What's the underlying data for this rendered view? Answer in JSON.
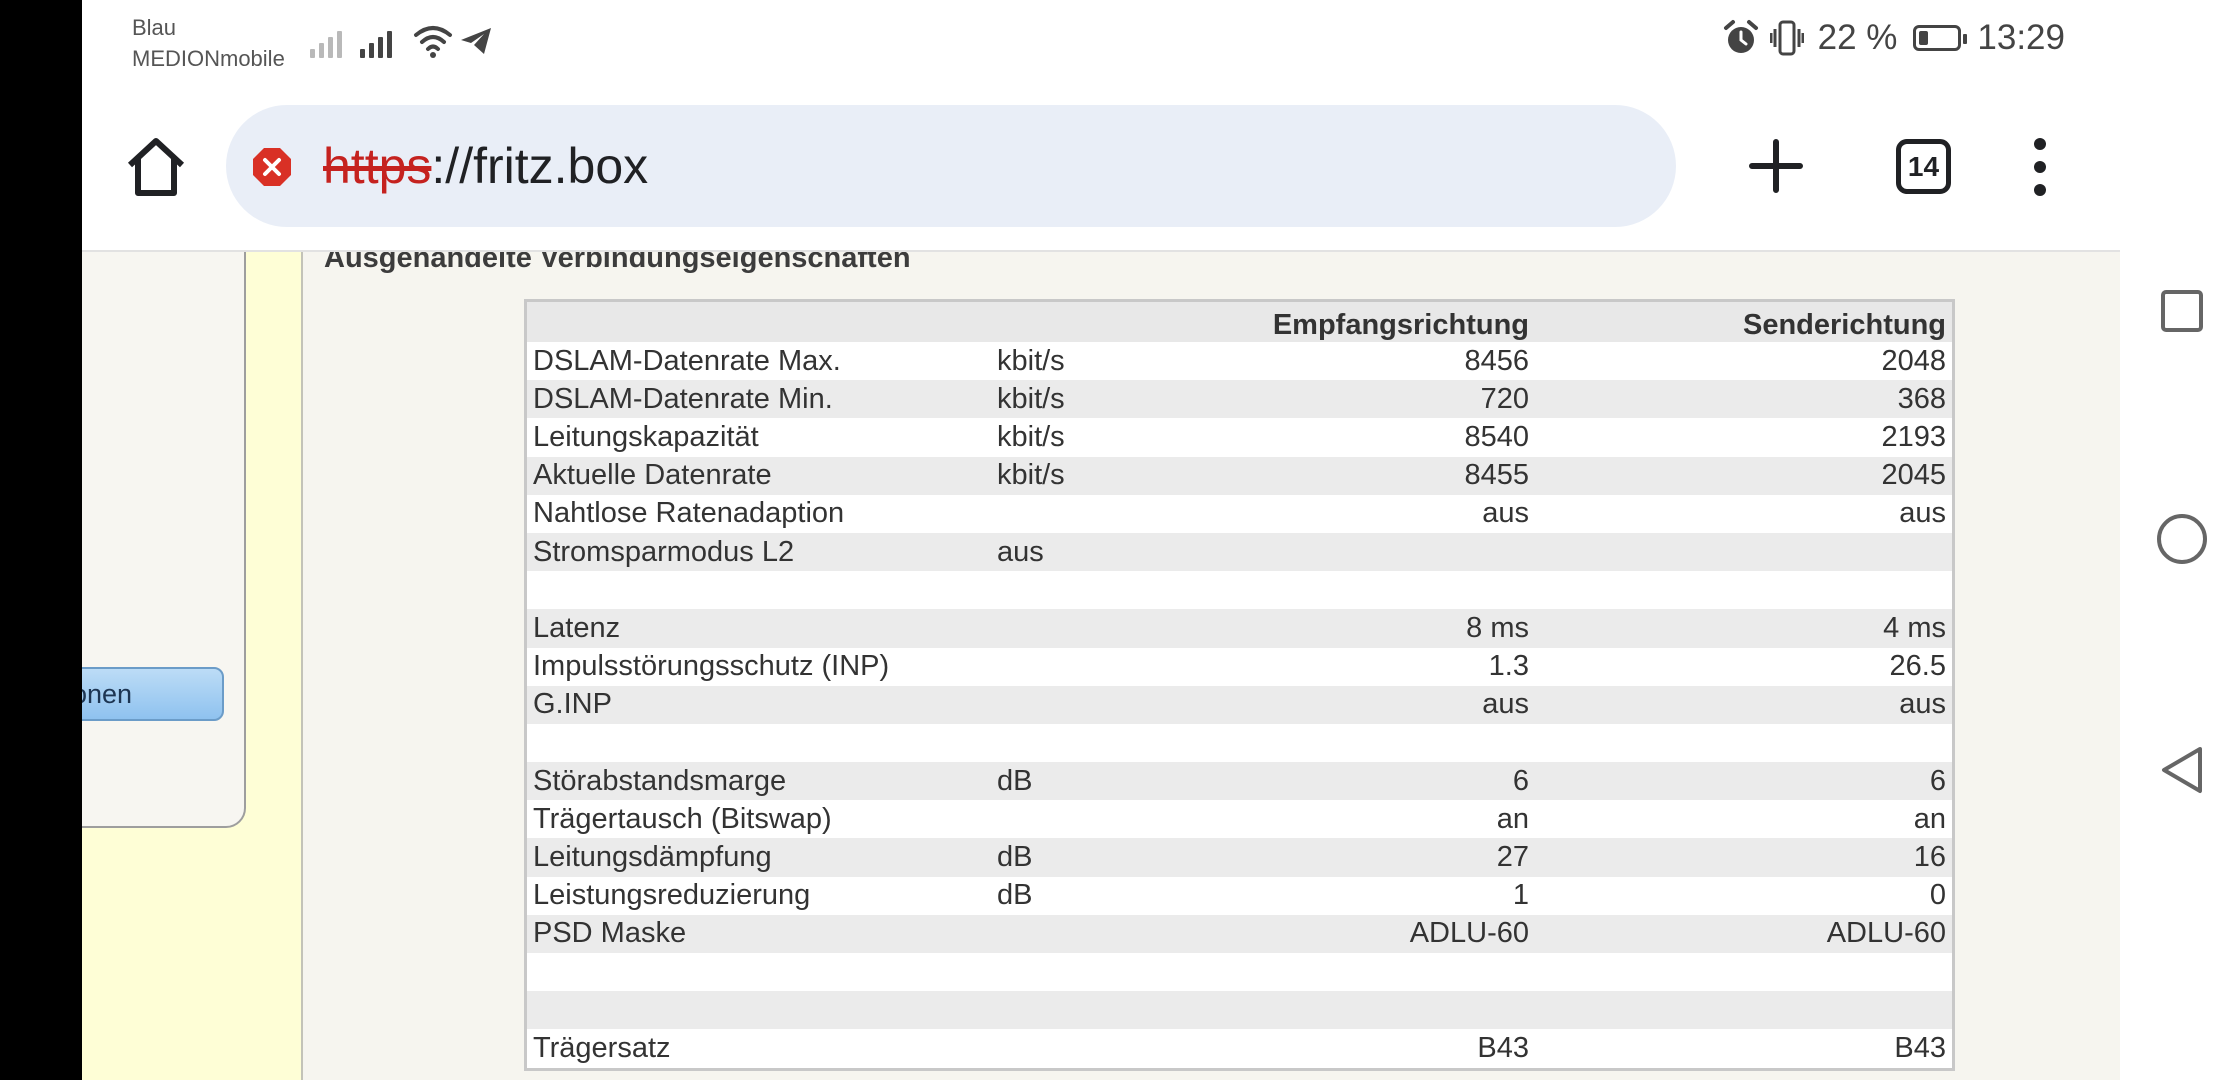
{
  "status_bar": {
    "carrier_line1": "Blau",
    "carrier_line2": "MEDIONmobile",
    "battery_percent": "22 %",
    "time": "13:29",
    "icons": [
      "signal-icon",
      "wifi-icon",
      "telegram-icon",
      "alarm-icon",
      "vibrate-icon",
      "battery-icon"
    ]
  },
  "browser": {
    "url_scheme": "https",
    "url_rest": "://fritz.box",
    "tab_count": "14",
    "security_color": "#d93025"
  },
  "sidebar": {
    "partial_item_label": "ionen"
  },
  "content": {
    "section_title": "Ausgehandelte Verbindungseigenschaften",
    "table": {
      "headers": [
        "",
        "",
        "Empfangsrichtung",
        "Senderichtung"
      ],
      "rows": [
        {
          "label": "DSLAM-Datenrate Max.",
          "unit": "kbit/s",
          "rx": "8456",
          "tx": "2048"
        },
        {
          "label": "DSLAM-Datenrate Min.",
          "unit": "kbit/s",
          "rx": "720",
          "tx": "368"
        },
        {
          "label": "Leitungskapazität",
          "unit": "kbit/s",
          "rx": "8540",
          "tx": "2193"
        },
        {
          "label": "Aktuelle Datenrate",
          "unit": "kbit/s",
          "rx": "8455",
          "tx": "2045"
        },
        {
          "label": "Nahtlose Ratenadaption",
          "unit": "",
          "rx": "aus",
          "tx": "aus"
        },
        {
          "label": "Stromsparmodus L2",
          "unit": "aus",
          "rx": "",
          "tx": ""
        },
        {
          "label": "",
          "unit": "",
          "rx": "",
          "tx": ""
        },
        {
          "label": "Latenz",
          "unit": "",
          "rx": "8 ms",
          "tx": "4 ms"
        },
        {
          "label": "Impulsstörungsschutz (INP)",
          "unit": "",
          "rx": "1.3",
          "tx": "26.5"
        },
        {
          "label": "G.INP",
          "unit": "",
          "rx": "aus",
          "tx": "aus"
        },
        {
          "label": "",
          "unit": "",
          "rx": "",
          "tx": ""
        },
        {
          "label": "Störabstandsmarge",
          "unit": "dB",
          "rx": "6",
          "tx": "6"
        },
        {
          "label": "Trägertausch (Bitswap)",
          "unit": "",
          "rx": "an",
          "tx": "an"
        },
        {
          "label": "Leitungsdämpfung",
          "unit": "dB",
          "rx": "27",
          "tx": "16"
        },
        {
          "label": "Leistungsreduzierung",
          "unit": "dB",
          "rx": "1",
          "tx": "0"
        },
        {
          "label": "PSD Maske",
          "unit": "",
          "rx": "ADLU-60",
          "tx": "ADLU-60"
        },
        {
          "label": "",
          "unit": "",
          "rx": "",
          "tx": ""
        },
        {
          "label": "",
          "unit": "",
          "rx": "",
          "tx": ""
        },
        {
          "label": "Trägersatz",
          "unit": "",
          "rx": "B43",
          "tx": "B43"
        }
      ]
    }
  },
  "nav": {
    "buttons": [
      "recents-button",
      "home-button",
      "back-button"
    ]
  }
}
